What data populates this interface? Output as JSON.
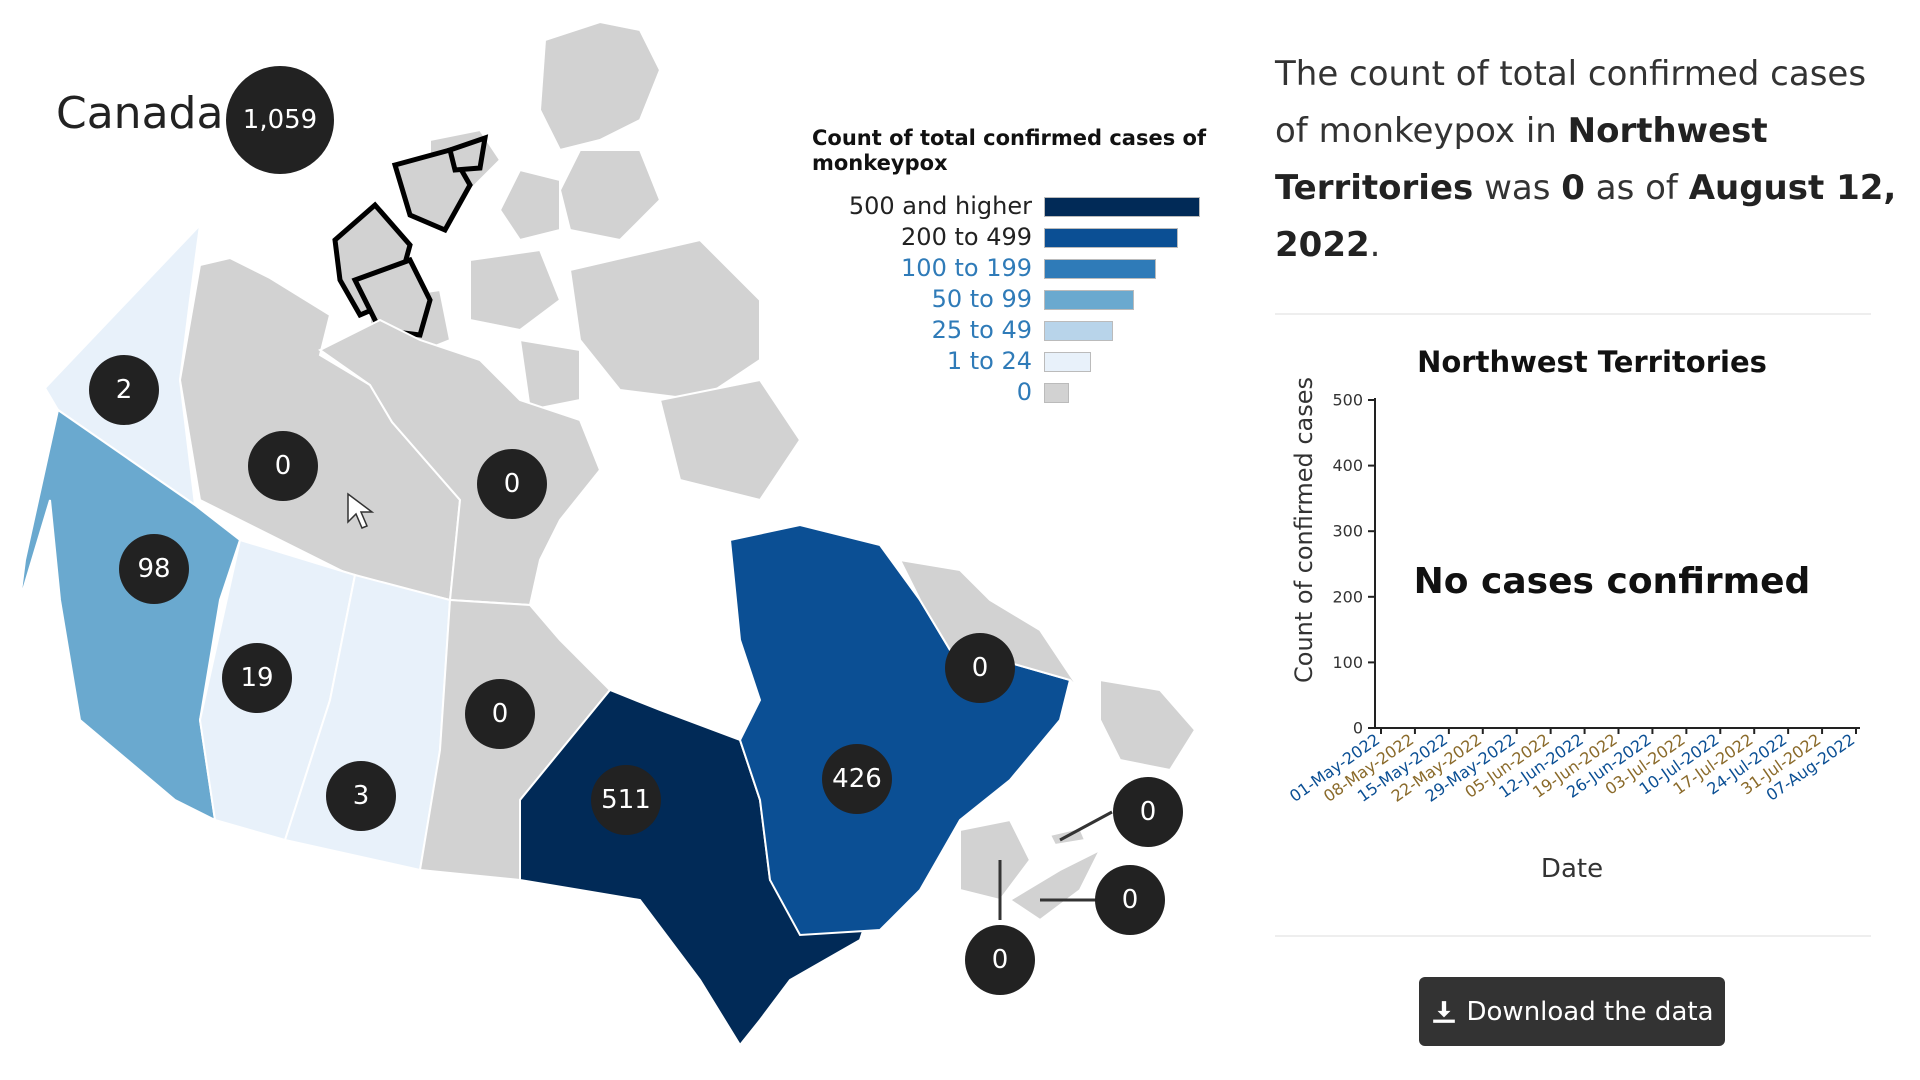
{
  "map": {
    "country_name": "Canada",
    "country_total": "1,059",
    "regions": [
      {
        "id": "yukon",
        "name": "Yukon",
        "count": "2",
        "color": "#e8f1fa"
      },
      {
        "id": "northwest-territories",
        "name": "Northwest Territories",
        "count": "0",
        "color": "#d2d2d2"
      },
      {
        "id": "nunavut",
        "name": "Nunavut",
        "count": "0",
        "color": "#d2d2d2"
      },
      {
        "id": "british-columbia",
        "name": "British Columbia",
        "count": "98",
        "color": "#6aa9cf"
      },
      {
        "id": "alberta",
        "name": "Alberta",
        "count": "19",
        "color": "#e8f1fa"
      },
      {
        "id": "saskatchewan",
        "name": "Saskatchewan",
        "count": "3",
        "color": "#e8f1fa"
      },
      {
        "id": "manitoba",
        "name": "Manitoba",
        "count": "0",
        "color": "#d2d2d2"
      },
      {
        "id": "ontario",
        "name": "Ontario",
        "count": "511",
        "color": "#012a57"
      },
      {
        "id": "quebec",
        "name": "Quebec",
        "count": "426",
        "color": "#0b4f94"
      },
      {
        "id": "newfoundland-and-labrador",
        "name": "Newfoundland and Labrador",
        "count": "0",
        "color": "#d2d2d2"
      },
      {
        "id": "prince-edward-island",
        "name": "Prince Edward Island",
        "count": "0",
        "color": "#d2d2d2"
      },
      {
        "id": "nova-scotia",
        "name": "Nova Scotia",
        "count": "0",
        "color": "#d2d2d2"
      },
      {
        "id": "new-brunswick",
        "name": "New Brunswick",
        "count": "0",
        "color": "#d2d2d2"
      }
    ],
    "selected_region": "northwest-territories"
  },
  "legend": {
    "title": "Count of total confirmed cases of monkeypox",
    "items": [
      {
        "label": "500 and higher",
        "color": "#012a57",
        "fraction": 1.0
      },
      {
        "label": "200 to 499",
        "color": "#0b4f94",
        "fraction": 0.86
      },
      {
        "label": "100 to 199",
        "color": "#2f7bb8",
        "fraction": 0.72
      },
      {
        "label": "50 to 99",
        "color": "#6aa9cf",
        "fraction": 0.58
      },
      {
        "label": "25 to 49",
        "color": "#b8d4ea",
        "fraction": 0.44
      },
      {
        "label": "1 to 24",
        "color": "#e8f1fa",
        "fraction": 0.3
      },
      {
        "label": "0",
        "color": "#d2d2d2",
        "fraction": 0.16
      }
    ]
  },
  "summary": {
    "prefix": "The count of total confirmed cases of monkeypox in",
    "region": "Northwest Territories",
    "middle": "was",
    "value": "0",
    "as_of": "as of",
    "date": "August 12, 2022",
    "end": "."
  },
  "chart_data": {
    "type": "line",
    "title": "Northwest Territories",
    "xlabel": "Date",
    "ylabel": "Count of confirmed cases",
    "ylim": [
      0,
      500
    ],
    "yticks": [
      "0",
      "100",
      "200",
      "300",
      "400",
      "500"
    ],
    "x": [
      "01-May-2022",
      "08-May-2022",
      "15-May-2022",
      "22-May-2022",
      "29-May-2022",
      "05-Jun-2022",
      "12-Jun-2022",
      "19-Jun-2022",
      "26-Jun-2022",
      "03-Jul-2022",
      "10-Jul-2022",
      "17-Jul-2022",
      "24-Jul-2022",
      "31-Jul-2022",
      "07-Aug-2022"
    ],
    "series": [],
    "annotation": "No cases confirmed",
    "grid": false
  },
  "download": {
    "label": "Download the data",
    "icon": "download-icon"
  }
}
